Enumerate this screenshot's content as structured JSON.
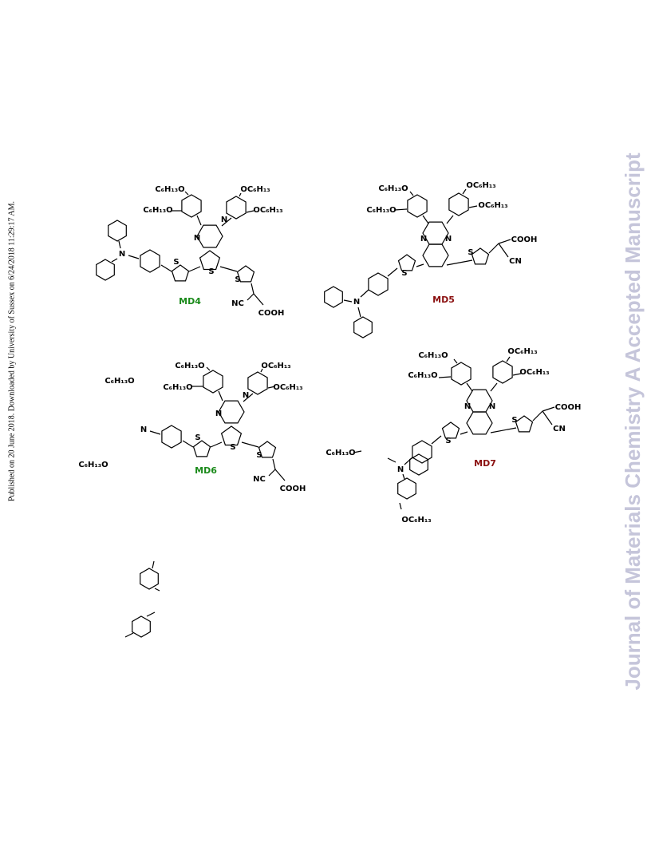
{
  "side_note": "Published on 20 June 2018. Downloaded by University of Sussex on 6/24/2018 11:29:17 AM.",
  "journal_watermark": "Journal of Materials Chemistry A Accepted Manuscript",
  "molecules": [
    {
      "name": "MD4",
      "labels": [
        "C₆H₁₃O",
        "C₆H₁₃O",
        "OC₆H₁₃",
        "OC₆H₁₃",
        "N",
        "N",
        "S",
        "S",
        "S",
        "N",
        "NC",
        "COOH"
      ]
    },
    {
      "name": "MD5",
      "labels": [
        "C₆H₁₃O",
        "C₆H₁₃O",
        "OC₆H₁₃",
        "OC₆H₁₃",
        "N",
        "N",
        "S",
        "S",
        "N",
        "COOH",
        "CN"
      ]
    },
    {
      "name": "MD6",
      "labels": [
        "C₆H₁₃O",
        "C₆H₁₃O",
        "OC₆H₁₃",
        "OC₆H₁₃",
        "N",
        "N",
        "S",
        "S",
        "S",
        "N",
        "C₆H₁₃O",
        "C₆H₁₃O",
        "NC",
        "COOH"
      ]
    },
    {
      "name": "MD7",
      "labels": [
        "C₆H₁₃O",
        "C₆H₁₃O",
        "OC₆H₁₃",
        "OC₆H₁₃",
        "N",
        "N",
        "S",
        "S",
        "N",
        "C₆H₁₃O",
        "OC₆H₁₃",
        "COOH",
        "CN"
      ]
    }
  ]
}
